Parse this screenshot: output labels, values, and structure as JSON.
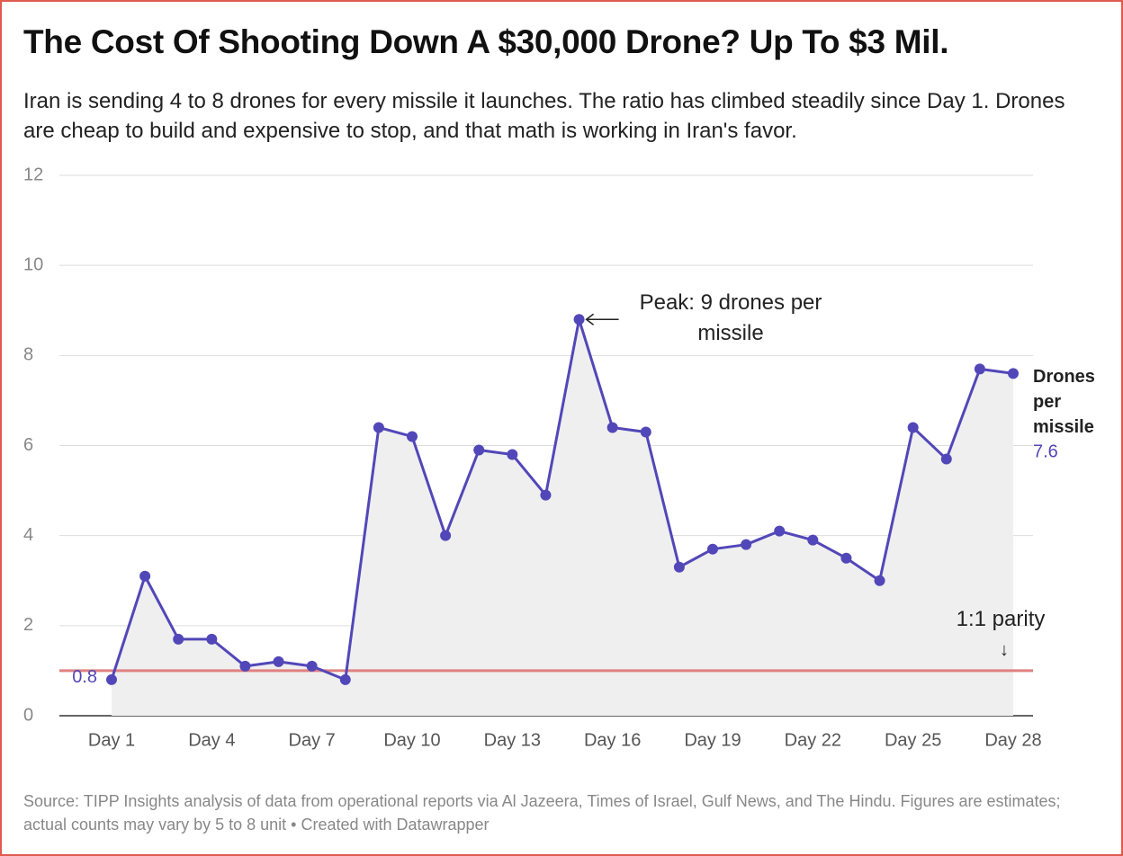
{
  "chart_data": {
    "type": "line",
    "title": "The Cost Of Shooting Down A $30,000 Drone? Up To $3 Mil.",
    "subtitle": "Iran is sending 4 to 8 drones for every missile it launches. The ratio has climbed steadily since Day 1. Drones are cheap to build and expensive to stop, and that math is working in Iran's favor.",
    "categories": [
      "Day 1",
      null,
      null,
      "Day 4",
      null,
      null,
      "Day 7",
      null,
      null,
      "Day 10",
      null,
      null,
      "Day 13",
      null,
      null,
      "Day 16",
      null,
      null,
      "Day 19",
      null,
      null,
      "Day 22",
      null,
      null,
      "Day 25",
      null,
      null,
      "Day 28"
    ],
    "series": [
      {
        "name": "Drones per missile",
        "color": "#5247b8",
        "values": [
          0.8,
          3.1,
          1.7,
          1.7,
          1.1,
          1.2,
          1.1,
          0.8,
          6.4,
          6.2,
          4.0,
          5.9,
          5.8,
          4.9,
          8.8,
          6.4,
          6.3,
          3.3,
          3.7,
          3.8,
          4.1,
          3.9,
          3.5,
          3.0,
          6.4,
          5.7,
          7.7,
          7.6
        ]
      }
    ],
    "ylim": [
      0,
      12
    ],
    "yticks": [
      0,
      2,
      4,
      6,
      8,
      10,
      12
    ],
    "grid": true,
    "area_fill": "#efefef",
    "reference_line": {
      "value": 1,
      "label": "1:1 parity",
      "color": "#e08080"
    },
    "annotations": [
      "Peak: 9 drones per missile"
    ],
    "source": "Source: TIPP Insights analysis of data from operational reports via Al Jazeera, Times of Israel, Gulf News, and The Hindu. Figures are estimates; actual counts may vary by 5 to 8 unit • Created with Datawrapper"
  }
}
